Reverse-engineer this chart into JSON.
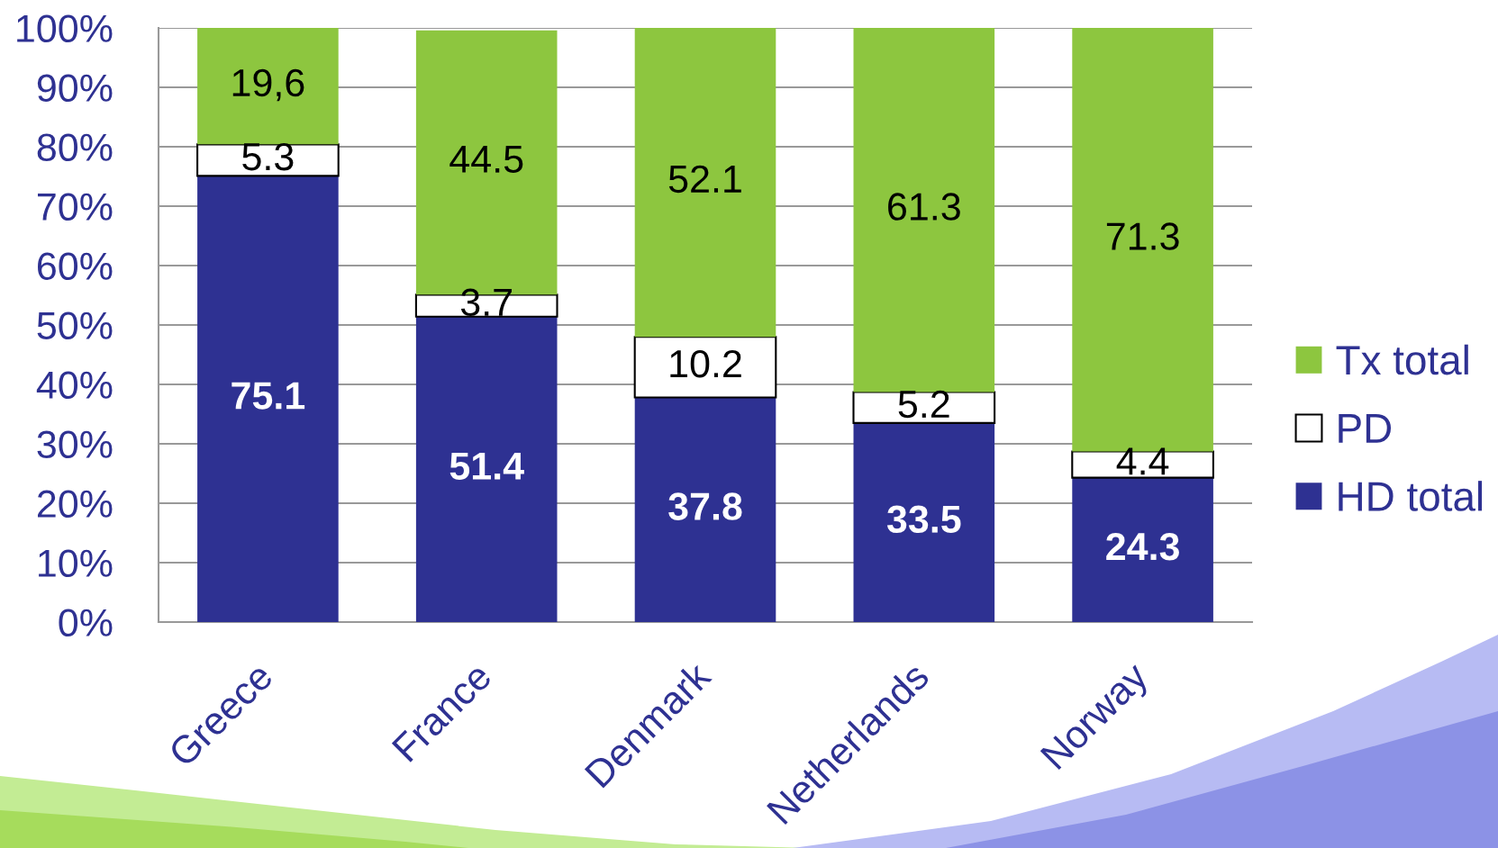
{
  "chart_data": {
    "type": "bar",
    "stacked": true,
    "categories": [
      "Greece",
      "France",
      "Denmark",
      "Netherlands",
      "Norway"
    ],
    "series": [
      {
        "name": "HD total",
        "color": "#2e3192",
        "values": [
          75.1,
          51.4,
          37.8,
          33.5,
          24.3
        ],
        "value_labels": [
          "75.1",
          "51.4",
          "37.8",
          "33.5",
          "24.3"
        ]
      },
      {
        "name": "PD",
        "color": "#ffffff",
        "values": [
          5.3,
          3.7,
          10.2,
          5.2,
          4.4
        ],
        "value_labels": [
          "5.3",
          "3.7",
          "10.2",
          "5.2",
          "4.4"
        ]
      },
      {
        "name": "Tx total",
        "color": "#8dc63f",
        "values": [
          19.6,
          44.5,
          52.1,
          61.3,
          71.3
        ],
        "value_labels": [
          "19,6",
          "44.5",
          "52.1",
          "61.3",
          "71.3"
        ]
      }
    ],
    "ylim": [
      0,
      100
    ],
    "yticks": [
      {
        "value": 0,
        "label": "0%"
      },
      {
        "value": 10,
        "label": "10%"
      },
      {
        "value": 20,
        "label": "20%"
      },
      {
        "value": 30,
        "label": "30%"
      },
      {
        "value": 40,
        "label": "40%"
      },
      {
        "value": 50,
        "label": "50%"
      },
      {
        "value": 60,
        "label": "60%"
      },
      {
        "value": 70,
        "label": "70%"
      },
      {
        "value": 80,
        "label": "80%"
      },
      {
        "value": 90,
        "label": "90%"
      },
      {
        "value": 100,
        "label": "100%"
      }
    ],
    "grid": "y",
    "legend": "right"
  }
}
